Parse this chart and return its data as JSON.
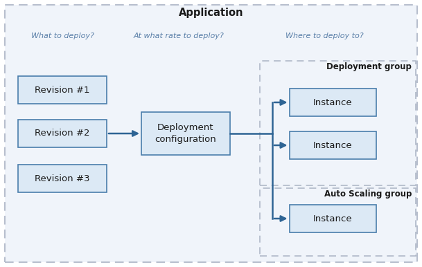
{
  "title": "Application",
  "bg_color": "#ffffff",
  "outer_border_color": "#b0b8c8",
  "box_fill": "#dce9f5",
  "box_edge": "#4a7eab",
  "arrow_color": "#2e6494",
  "label_color": "#5a7fa8",
  "text_color": "#1a1a1a",
  "labels": {
    "what": "What to deploy?",
    "rate": "At what rate to deploy?",
    "where": "Where to deploy to?"
  },
  "revisions": [
    "Revision #1",
    "Revision #2",
    "Revision #3"
  ],
  "center_box": "Deployment\nconfiguration",
  "deployment_group_label": "Deployment group",
  "auto_scaling_label": "Auto Scaling group",
  "figw": 6.09,
  "figh": 3.86,
  "dpi": 100
}
